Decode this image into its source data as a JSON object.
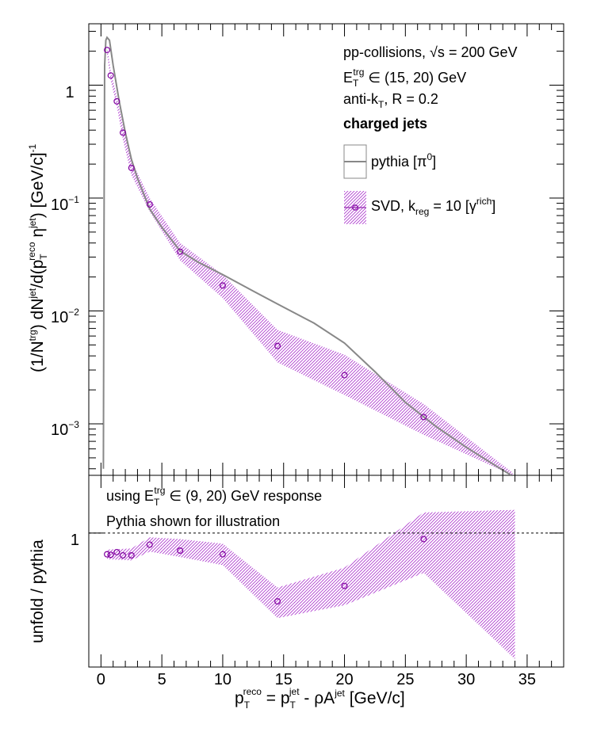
{
  "chart_data": [
    {
      "type": "line",
      "panel": "top",
      "xlim": [
        -1,
        38
      ],
      "ylim": [
        0.00035,
        3.5
      ],
      "yscale": "log",
      "ylabel_parts": {
        "main": "(1/N",
        "trg": "trg",
        "mid": ") dN",
        "jet": "jet",
        "mid2": "/d(p",
        "T": "T",
        "reco": "reco",
        "eta": " η",
        "jet2": "jet",
        "end": ") [GeV/c]",
        "m1": "-1"
      },
      "y_ticks": [
        {
          "value": 1,
          "label": "1",
          "exp": ""
        },
        {
          "value": 0.1,
          "label": "10",
          "exp": "−1"
        },
        {
          "value": 0.01,
          "label": "10",
          "exp": "−2"
        },
        {
          "value": 0.001,
          "label": "10",
          "exp": "−3"
        }
      ],
      "annotations": {
        "line1_a": "pp-collisions, ",
        "line1_sqrt": "√s",
        "line1_b": " = 200 GeV",
        "line2_E": "E",
        "line2_T": "T",
        "line2_trg": "trg",
        "line2_rest": " ∈ (15, 20) GeV",
        "line3_a": "anti-k",
        "line3_T": "T",
        "line3_b": ", R = 0.2",
        "line4": "charged jets"
      },
      "legend": {
        "pythia_label": "pythia [π",
        "pythia_sup": "0",
        "pythia_end": "]",
        "svd_label": "SVD, k",
        "svd_sub": "reg",
        "svd_mid": " = 10 [γ",
        "svd_sup": "rich",
        "svd_end": "]",
        "position": "top-right"
      },
      "series": [
        {
          "name": "pythia [π0]",
          "color": "#888888",
          "x": [
            0.2,
            0.25,
            0.3,
            0.4,
            0.5,
            0.7,
            1.0,
            1.5,
            2.0,
            2.5,
            3.0,
            4.0,
            5.0,
            6.5,
            8.0,
            10.0,
            12.5,
            15.0,
            17.5,
            20.0,
            22.5,
            25.0,
            27.5,
            30.0,
            32.5,
            33.7
          ],
          "y": [
            0.0004,
            0.05,
            1.5,
            2.5,
            2.65,
            2.5,
            1.5,
            0.72,
            0.38,
            0.22,
            0.15,
            0.08,
            0.055,
            0.034,
            0.027,
            0.021,
            0.015,
            0.0108,
            0.0078,
            0.0052,
            0.0029,
            0.00155,
            0.00095,
            0.00062,
            0.00042,
            0.00035
          ]
        },
        {
          "name": "SVD, kreg = 10 [γrich]",
          "color": "#8000a0",
          "points": [
            {
              "x": 0.5,
              "y": 2.05,
              "lo": 1.9,
              "hi": 2.2
            },
            {
              "x": 0.8,
              "y": 1.22,
              "lo": 1.1,
              "hi": 1.35
            },
            {
              "x": 1.3,
              "y": 0.72,
              "lo": 0.65,
              "hi": 0.8
            },
            {
              "x": 1.8,
              "y": 0.38,
              "lo": 0.33,
              "hi": 0.44
            },
            {
              "x": 2.5,
              "y": 0.185,
              "lo": 0.16,
              "hi": 0.215
            },
            {
              "x": 4.0,
              "y": 0.088,
              "lo": 0.076,
              "hi": 0.1
            },
            {
              "x": 6.5,
              "y": 0.0335,
              "lo": 0.028,
              "hi": 0.04
            },
            {
              "x": 10.0,
              "y": 0.0168,
              "lo": 0.013,
              "hi": 0.021
            },
            {
              "x": 14.5,
              "y": 0.0049,
              "lo": 0.0035,
              "hi": 0.0068
            },
            {
              "x": 20.0,
              "y": 0.0027,
              "lo": 0.0018,
              "hi": 0.0041
            },
            {
              "x": 26.5,
              "y": 0.00115,
              "lo": 0.0008,
              "hi": 0.0015
            },
            {
              "x": 33.8,
              "y": 0.00036,
              "lo": 0.00035,
              "hi": 0.00037
            }
          ]
        }
      ]
    },
    {
      "type": "scatter",
      "panel": "bottom",
      "xlim": [
        -1,
        38
      ],
      "ylim": [
        0.2,
        2.0
      ],
      "yscale": "log",
      "ylabel": "unfold / pythia",
      "y_tick_label": "1",
      "reference_line": 1,
      "annotations": {
        "line1_a": "using E",
        "line1_T": "T",
        "line1_trg": "trg",
        "line1_b": " ∈ (9, 20) GeV response",
        "line2": "Pythia shown for illustration"
      },
      "series": [
        {
          "name": "unfold / pythia",
          "color": "#8000a0",
          "points": [
            {
              "x": 0.5,
              "y": 0.775
            },
            {
              "x": 0.8,
              "y": 0.77
            },
            {
              "x": 1.3,
              "y": 0.795
            },
            {
              "x": 1.8,
              "y": 0.765
            },
            {
              "x": 2.5,
              "y": 0.765
            },
            {
              "x": 4.0,
              "y": 0.87
            },
            {
              "x": 6.5,
              "y": 0.81
            },
            {
              "x": 10.0,
              "y": 0.775
            },
            {
              "x": 14.5,
              "y": 0.44
            },
            {
              "x": 20.0,
              "y": 0.53
            },
            {
              "x": 26.5,
              "y": 0.93
            }
          ],
          "band": [
            {
              "x": 0.5,
              "lo": 0.73,
              "hi": 0.82
            },
            {
              "x": 2.5,
              "lo": 0.72,
              "hi": 0.83
            },
            {
              "x": 4.0,
              "lo": 0.8,
              "hi": 0.95
            },
            {
              "x": 6.5,
              "lo": 0.75,
              "hi": 0.93
            },
            {
              "x": 10.0,
              "lo": 0.68,
              "hi": 0.88
            },
            {
              "x": 14.5,
              "lo": 0.36,
              "hi": 0.52
            },
            {
              "x": 20.0,
              "lo": 0.42,
              "hi": 0.66
            },
            {
              "x": 26.5,
              "lo": 0.62,
              "hi": 1.28
            },
            {
              "x": 34.0,
              "lo": 0.22,
              "hi": 1.32
            }
          ]
        }
      ]
    }
  ],
  "x_axis": {
    "ticks": [
      0,
      5,
      10,
      15,
      20,
      25,
      30,
      35
    ],
    "title_p": "p",
    "title_T": "T",
    "title_reco": "reco",
    "title_eq": " = p",
    "title_T2": "T",
    "title_jet": "jet",
    "title_rest": " - ρA",
    "title_jet2": "jet",
    "title_unit": " [GeV/c]"
  }
}
